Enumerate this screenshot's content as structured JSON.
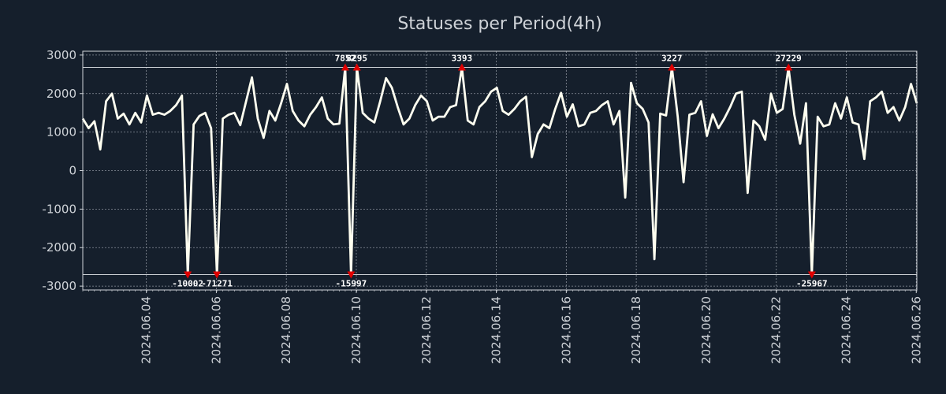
{
  "chart_data": {
    "type": "line",
    "title": "Statuses per Period(4h)",
    "xlabel": "",
    "ylabel": "",
    "x_range": [
      0,
      143
    ],
    "ylim": [
      -3100,
      3100
    ],
    "clip_range": [
      -2700,
      2680
    ],
    "grid": true,
    "yticks": [
      3000,
      2000,
      1000,
      0,
      -1000,
      -2000,
      -3000
    ],
    "ytick_labels": [
      "3000",
      "2000",
      "1000",
      "0",
      "-1000",
      "-2000",
      "-3000"
    ],
    "xticks": [
      {
        "x": 10.9,
        "label": "2024.06.04"
      },
      {
        "x": 22.9,
        "label": "2024.06.06"
      },
      {
        "x": 34.9,
        "label": "2024.06.08"
      },
      {
        "x": 46.9,
        "label": "2024.06.10"
      },
      {
        "x": 58.9,
        "label": "2024.06.12"
      },
      {
        "x": 70.9,
        "label": "2024.06.14"
      },
      {
        "x": 82.9,
        "label": "2024.06.16"
      },
      {
        "x": 94.9,
        "label": "2024.06.18"
      },
      {
        "x": 106.9,
        "label": "2024.06.20"
      },
      {
        "x": 118.9,
        "label": "2024.06.22"
      },
      {
        "x": 130.9,
        "label": "2024.06.24"
      },
      {
        "x": 142.9,
        "label": "2024.06.26"
      }
    ],
    "series": [
      {
        "name": "statuses",
        "values": [
          1350,
          1100,
          1280,
          550,
          1800,
          2000,
          1350,
          1480,
          1200,
          1500,
          1250,
          1950,
          1450,
          1500,
          1450,
          1550,
          1700,
          1950,
          -2700,
          1200,
          1420,
          1500,
          1100,
          -2700,
          1350,
          1450,
          1500,
          1180,
          1800,
          2420,
          1350,
          850,
          1550,
          1300,
          1750,
          2250,
          1550,
          1300,
          1150,
          1450,
          1650,
          1900,
          1350,
          1200,
          1220,
          2680,
          -2700,
          2680,
          1500,
          1350,
          1250,
          1800,
          2400,
          2150,
          1650,
          1200,
          1350,
          1700,
          1950,
          1800,
          1300,
          1400,
          1400,
          1650,
          1700,
          2680,
          1300,
          1200,
          1650,
          1800,
          2050,
          2150,
          1550,
          1450,
          1600,
          1800,
          1920,
          350,
          950,
          1200,
          1100,
          1600,
          2020,
          1400,
          1720,
          1150,
          1200,
          1500,
          1550,
          1700,
          1800,
          1200,
          1550,
          -700,
          2280,
          1750,
          1600,
          1250,
          -2300,
          1480,
          1430,
          2680,
          1400,
          -300,
          1450,
          1500,
          1800,
          900,
          1460,
          1100,
          1350,
          1650,
          2000,
          2050,
          -580,
          1300,
          1150,
          800,
          2000,
          1500,
          1600,
          2680,
          1450,
          700,
          1750,
          -2700,
          1400,
          1150,
          1200,
          1750,
          1350,
          1900,
          1250,
          1200,
          300,
          1800,
          1900,
          2050,
          1500,
          1650,
          1300,
          1650,
          2250,
          1750
        ]
      }
    ],
    "outliers": [
      {
        "x": 18,
        "value": -10002,
        "label": "-10002",
        "side": "bottom"
      },
      {
        "x": 23,
        "value": -71271,
        "label": "-71271",
        "side": "bottom"
      },
      {
        "x": 45,
        "value": 7852,
        "label": "7852",
        "side": "top"
      },
      {
        "x": 46,
        "value": -15997,
        "label": "-15997",
        "side": "bottom"
      },
      {
        "x": 47,
        "value": 8295,
        "label": "8295",
        "side": "top"
      },
      {
        "x": 65,
        "value": 3393,
        "label": "3393",
        "side": "top"
      },
      {
        "x": 101,
        "value": 3227,
        "label": "3227",
        "side": "top"
      },
      {
        "x": 121,
        "value": 27229,
        "label": "27229",
        "side": "top"
      },
      {
        "x": 125,
        "value": -25967,
        "label": "-25967",
        "side": "bottom"
      }
    ],
    "colors": {
      "background": "#151f2c",
      "line": "#fffff0",
      "marker": "#e00000",
      "text": "#cfd3d8"
    }
  }
}
